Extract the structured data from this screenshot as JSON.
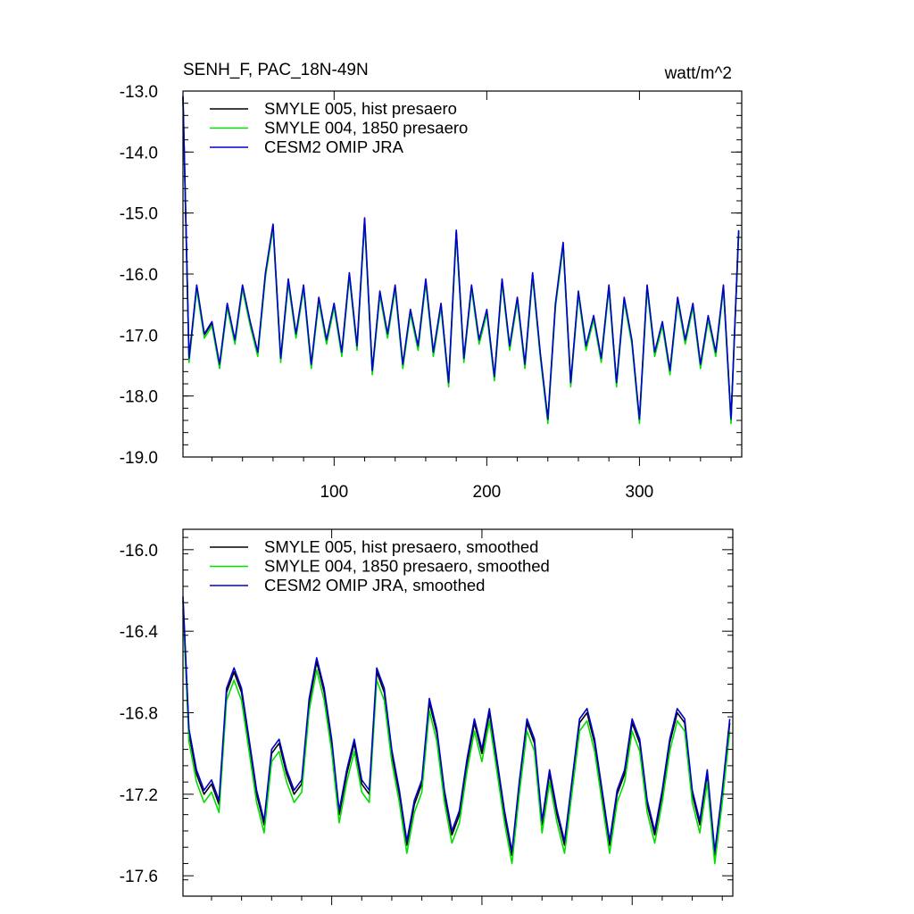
{
  "header": {
    "title": "SENH_F, PAC_18N-49N",
    "units": "watt/m^2"
  },
  "colors": {
    "smyle005": "#000000",
    "smyle004": "#00e000",
    "omip": "#0000cc"
  },
  "chart_data": [
    {
      "type": "line",
      "title": "SENH_F, PAC_18N-49N",
      "xlabel": "",
      "ylabel": "",
      "xlim": [
        1,
        367
      ],
      "ylim": [
        -19.0,
        -13.0
      ],
      "xticks": [
        100,
        200,
        300
      ],
      "xticklabels": [
        "100",
        "200",
        "300"
      ],
      "yticks": [
        -13,
        -14,
        -15,
        -16,
        -17,
        -18,
        -19
      ],
      "yticklabels": [
        "-13.0",
        "-14.0",
        "-15.0",
        "-16.0",
        "-17.0",
        "-18.0",
        "-19.0"
      ],
      "grid": false,
      "legend": "top-left",
      "series": [
        {
          "name": "SMYLE 005, hist presaero",
          "color": "#000000",
          "offset": 0.0
        },
        {
          "name": "SMYLE 004, 1850 presaero",
          "color": "#00e000",
          "offset": -0.05
        },
        {
          "name": "CESM2 OMIP JRA",
          "color": "#0000cc",
          "offset": 0.02
        }
      ],
      "x": [
        1,
        5,
        10,
        15,
        20,
        25,
        30,
        35,
        40,
        45,
        50,
        55,
        60,
        65,
        70,
        75,
        80,
        85,
        90,
        95,
        100,
        105,
        110,
        115,
        120,
        125,
        130,
        135,
        140,
        145,
        150,
        155,
        160,
        165,
        170,
        175,
        180,
        185,
        190,
        195,
        200,
        205,
        210,
        215,
        220,
        225,
        230,
        235,
        240,
        245,
        250,
        255,
        260,
        265,
        270,
        275,
        280,
        285,
        290,
        295,
        300,
        305,
        310,
        315,
        320,
        325,
        330,
        335,
        340,
        345,
        350,
        355,
        360,
        365
      ],
      "values": [
        -13.1,
        -17.4,
        -16.2,
        -17.0,
        -16.8,
        -17.5,
        -16.5,
        -17.1,
        -16.2,
        -16.8,
        -17.3,
        -16.0,
        -15.2,
        -17.4,
        -16.1,
        -17.0,
        -16.2,
        -17.5,
        -16.4,
        -17.1,
        -16.5,
        -17.3,
        -16.0,
        -17.2,
        -15.1,
        -17.6,
        -16.3,
        -17.0,
        -16.2,
        -17.5,
        -16.6,
        -17.2,
        -16.1,
        -17.3,
        -16.5,
        -17.8,
        -15.3,
        -17.4,
        -16.2,
        -17.1,
        -16.6,
        -17.7,
        -16.1,
        -17.2,
        -16.4,
        -17.5,
        -16.0,
        -17.3,
        -18.4,
        -16.5,
        -15.5,
        -17.8,
        -16.3,
        -17.2,
        -16.7,
        -17.4,
        -16.2,
        -17.8,
        -16.4,
        -17.1,
        -18.4,
        -16.2,
        -17.3,
        -16.8,
        -17.6,
        -16.4,
        -17.1,
        -16.5,
        -17.5,
        -16.7,
        -17.3,
        -16.2,
        -18.4,
        -15.3
      ]
    },
    {
      "type": "line",
      "title": "",
      "xlabel": "",
      "ylabel": "",
      "xlim": [
        1,
        367
      ],
      "ylim": [
        -17.7,
        -15.9
      ],
      "xticks": [
        100,
        200,
        300
      ],
      "xticklabels": [],
      "yticks": [
        -16.0,
        -16.4,
        -16.8,
        -17.2,
        -17.6
      ],
      "yticklabels": [
        "-16.0",
        "-16.4",
        "-16.8",
        "-17.2",
        "-17.6"
      ],
      "grid": false,
      "legend": "top-left",
      "series": [
        {
          "name": "SMYLE 005, hist presaero, smoothed",
          "color": "#000000",
          "offset": 0.0
        },
        {
          "name": "SMYLE 004, 1850 presaero, smoothed",
          "color": "#00e000",
          "offset": -0.04
        },
        {
          "name": "CESM2 OMIP JRA, smoothed",
          "color": "#0000cc",
          "offset": 0.02
        }
      ],
      "x": [
        1,
        5,
        10,
        15,
        20,
        25,
        30,
        35,
        40,
        45,
        50,
        55,
        60,
        65,
        70,
        75,
        80,
        85,
        90,
        95,
        100,
        105,
        110,
        115,
        120,
        125,
        130,
        135,
        140,
        145,
        150,
        155,
        160,
        165,
        170,
        175,
        180,
        185,
        190,
        195,
        200,
        205,
        210,
        215,
        220,
        225,
        230,
        235,
        240,
        245,
        250,
        255,
        260,
        265,
        270,
        275,
        280,
        285,
        290,
        295,
        300,
        305,
        310,
        315,
        320,
        325,
        330,
        335,
        340,
        345,
        350,
        355,
        360,
        365
      ],
      "values": [
        -16.25,
        -16.9,
        -17.1,
        -17.2,
        -17.15,
        -17.25,
        -16.7,
        -16.6,
        -16.7,
        -16.95,
        -17.2,
        -17.35,
        -17.0,
        -16.95,
        -17.1,
        -17.2,
        -17.15,
        -16.75,
        -16.55,
        -16.7,
        -16.95,
        -17.3,
        -17.1,
        -16.95,
        -17.15,
        -17.2,
        -16.6,
        -16.7,
        -17.0,
        -17.2,
        -17.45,
        -17.25,
        -17.15,
        -16.75,
        -16.9,
        -17.2,
        -17.4,
        -17.3,
        -17.05,
        -16.85,
        -17.0,
        -16.8,
        -17.05,
        -17.3,
        -17.5,
        -17.15,
        -16.85,
        -16.95,
        -17.35,
        -17.1,
        -17.3,
        -17.45,
        -17.15,
        -16.85,
        -16.8,
        -16.95,
        -17.2,
        -17.45,
        -17.2,
        -17.1,
        -16.85,
        -16.95,
        -17.25,
        -17.4,
        -17.2,
        -16.95,
        -16.8,
        -16.85,
        -17.2,
        -17.35,
        -17.1,
        -17.5,
        -17.2,
        -16.85
      ]
    }
  ]
}
